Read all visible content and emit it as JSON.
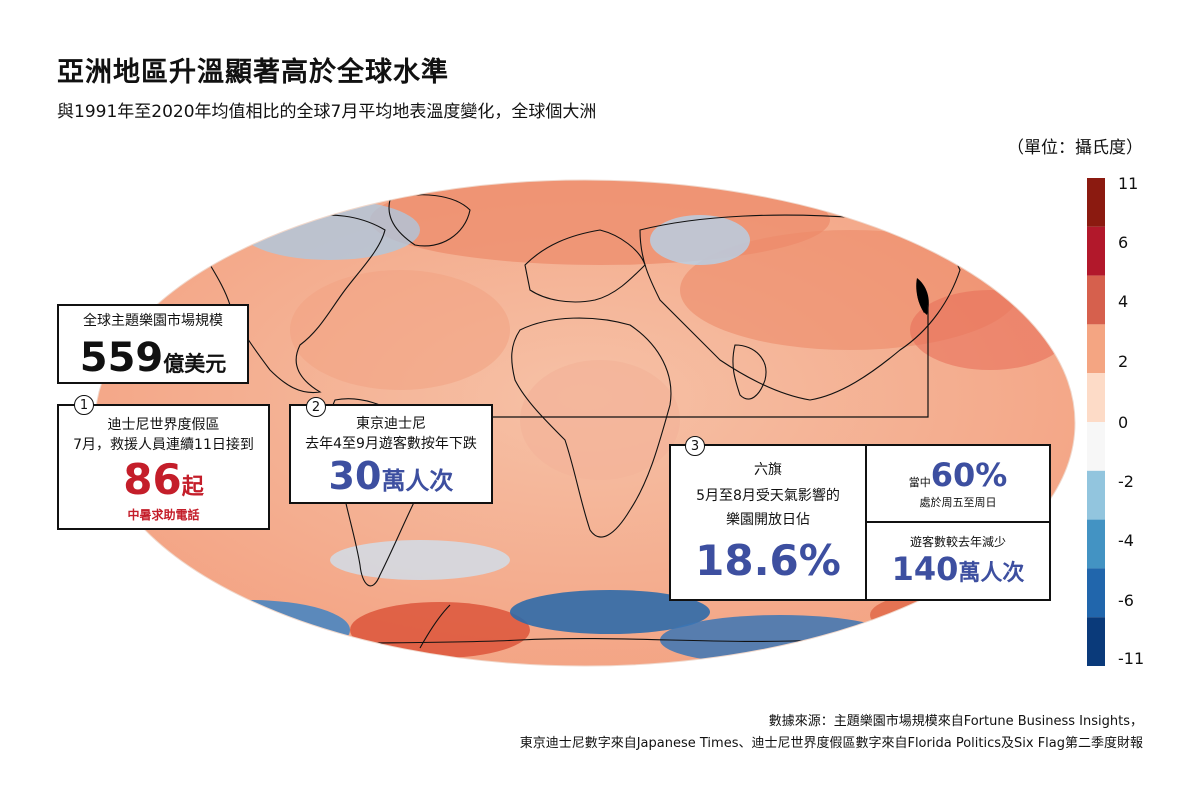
{
  "header": {
    "title": "亞洲地區升溫顯著高於全球水準",
    "subtitle": "與1991年至2020年均值相比的全球7月平均地表溫度變化，全球個大洲",
    "unit": "（單位：攝氏度）"
  },
  "colorbar": {
    "ticks": [
      "11",
      "6",
      "4",
      "2",
      "0",
      "-2",
      "-4",
      "-6",
      "-11"
    ],
    "colors": [
      "#0a3a7a",
      "#2166ac",
      "#4393c3",
      "#92c5de",
      "#f7f7f7",
      "#fddbc7",
      "#f4a582",
      "#d6604d",
      "#b2182b",
      "#8b1a10"
    ]
  },
  "market": {
    "label": "全球主題樂園市場規模",
    "value": "559",
    "unit": "億美元"
  },
  "callout1": {
    "num": "1",
    "line1": "迪士尼世界度假區",
    "line2": "7月，救援人員連續11日接到",
    "value": "86",
    "unit": "起",
    "note": "中暑求助電話"
  },
  "callout2": {
    "num": "2",
    "line1": "東京迪士尼",
    "line2": "去年4至9月遊客數按年下跌",
    "value": "30",
    "unit": "萬人次"
  },
  "callout3": {
    "num": "3",
    "line1": "六旗",
    "line2": "5月至8月受天氣影響的",
    "line3": "樂園開放日佔",
    "value": "18.6%",
    "sub_a_prefix": "當中",
    "sub_a_value": "60%",
    "sub_a_note": "處於周五至周日",
    "sub_b_label": "遊客數較去年減少",
    "sub_b_value": "140",
    "sub_b_unit": "萬人次"
  },
  "source": {
    "line1": "數據來源：主題樂園市場規模來自Fortune Business Insights，",
    "line2": "東京迪士尼數字來自Japanese Times、迪士尼世界度假區數字來自Florida Politics及Six Flag第二季度財報"
  }
}
